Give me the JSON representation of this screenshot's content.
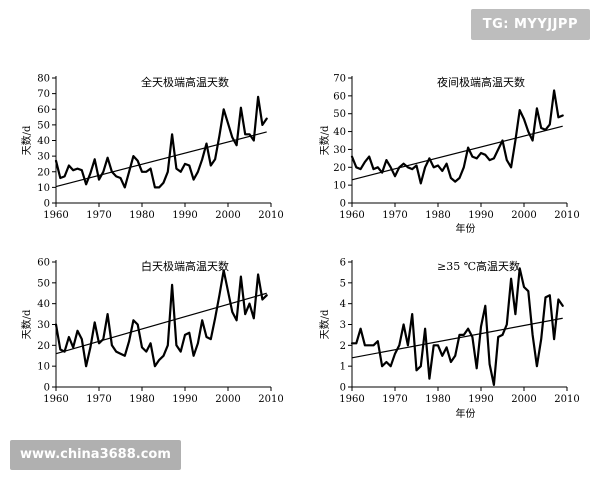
{
  "watermarks": {
    "top_right": "TG: MYYJJPP",
    "bottom_left": "www.china3688.com"
  },
  "colors": {
    "line": "#000000",
    "axis": "#000000",
    "background": "#ffffff"
  },
  "chart_data": [
    {
      "type": "line",
      "title": "全天极端高温天数",
      "xlabel": "",
      "ylabel": "天数/d",
      "xlim": [
        1960,
        2010
      ],
      "ylim": [
        0,
        80
      ],
      "xticks": [
        1960,
        1970,
        1980,
        1990,
        2000,
        2010
      ],
      "yticks": [
        0,
        10,
        20,
        30,
        40,
        50,
        60,
        70,
        80
      ],
      "grid": false,
      "x": [
        1960,
        1961,
        1962,
        1963,
        1964,
        1965,
        1966,
        1967,
        1968,
        1969,
        1970,
        1971,
        1972,
        1973,
        1974,
        1975,
        1976,
        1977,
        1978,
        1979,
        1980,
        1981,
        1982,
        1983,
        1984,
        1985,
        1986,
        1987,
        1988,
        1989,
        1990,
        1991,
        1992,
        1993,
        1994,
        1995,
        1996,
        1997,
        1998,
        1999,
        2000,
        2001,
        2002,
        2003,
        2004,
        2005,
        2006,
        2007,
        2008,
        2009
      ],
      "series": [
        {
          "values": [
            27,
            16,
            17,
            24,
            21,
            22,
            21,
            12,
            19,
            28,
            15,
            20,
            29,
            20,
            17,
            16,
            10,
            20,
            30,
            27,
            20,
            20,
            22,
            10,
            10,
            13,
            20,
            44,
            22,
            20,
            25,
            24,
            15,
            20,
            28,
            38,
            24,
            28,
            43,
            60,
            51,
            42,
            37,
            61,
            44,
            44,
            40,
            68,
            50,
            54
          ]
        },
        {
          "trend": [
            10.5,
            45.5
          ]
        }
      ]
    },
    {
      "type": "line",
      "title": "夜间极端高温天数",
      "xlabel": "年份",
      "ylabel": "天数/d",
      "xlim": [
        1960,
        2010
      ],
      "ylim": [
        0,
        70
      ],
      "xticks": [
        1960,
        1970,
        1980,
        1990,
        2000,
        2010
      ],
      "yticks": [
        0,
        10,
        20,
        30,
        40,
        50,
        60,
        70
      ],
      "grid": false,
      "x": [
        1960,
        1961,
        1962,
        1963,
        1964,
        1965,
        1966,
        1967,
        1968,
        1969,
        1970,
        1971,
        1972,
        1973,
        1974,
        1975,
        1976,
        1977,
        1978,
        1979,
        1980,
        1981,
        1982,
        1983,
        1984,
        1985,
        1986,
        1987,
        1988,
        1989,
        1990,
        1991,
        1992,
        1993,
        1994,
        1995,
        1996,
        1997,
        1998,
        1999,
        2000,
        2001,
        2002,
        2003,
        2004,
        2005,
        2006,
        2007,
        2008,
        2009
      ],
      "series": [
        {
          "values": [
            26,
            20,
            19,
            23,
            26,
            19,
            20,
            17,
            24,
            20,
            15,
            20,
            22,
            20,
            19,
            21,
            11,
            20,
            25,
            20,
            21,
            18,
            22,
            14,
            12,
            14,
            20,
            31,
            26,
            25,
            28,
            27,
            24,
            25,
            30,
            35,
            24,
            20,
            35,
            52,
            47,
            40,
            35,
            53,
            42,
            41,
            44,
            63,
            48,
            49
          ]
        },
        {
          "trend": [
            13,
            43
          ]
        }
      ]
    },
    {
      "type": "line",
      "title": "白天极端高温天数",
      "xlabel": "",
      "ylabel": "天数/d",
      "xlim": [
        1960,
        2010
      ],
      "ylim": [
        0,
        60
      ],
      "xticks": [
        1960,
        1970,
        1980,
        1990,
        2000,
        2010
      ],
      "yticks": [
        0,
        10,
        20,
        30,
        40,
        50,
        60
      ],
      "grid": false,
      "x": [
        1960,
        1961,
        1962,
        1963,
        1964,
        1965,
        1966,
        1967,
        1968,
        1969,
        1970,
        1971,
        1972,
        1973,
        1974,
        1975,
        1976,
        1977,
        1978,
        1979,
        1980,
        1981,
        1982,
        1983,
        1984,
        1985,
        1986,
        1987,
        1988,
        1989,
        1990,
        1991,
        1992,
        1993,
        1994,
        1995,
        1996,
        1997,
        1998,
        1999,
        2000,
        2001,
        2002,
        2003,
        2004,
        2005,
        2006,
        2007,
        2008,
        2009
      ],
      "series": [
        {
          "values": [
            30,
            18,
            17,
            24,
            19,
            27,
            23,
            10,
            19,
            31,
            21,
            23,
            35,
            20,
            17,
            16,
            15,
            22,
            32,
            30,
            19,
            17,
            21,
            10,
            13,
            15,
            20,
            49,
            20,
            17,
            25,
            26,
            15,
            21,
            32,
            24,
            23,
            33,
            44,
            56,
            46,
            36,
            32,
            53,
            35,
            40,
            33,
            54,
            42,
            44
          ]
        },
        {
          "trend": [
            16,
            45
          ]
        }
      ]
    },
    {
      "type": "line",
      "title": "≥35 ℃高温天数",
      "xlabel": "年份",
      "ylabel": "天数/d",
      "xlim": [
        1960,
        2010
      ],
      "ylim": [
        0,
        6
      ],
      "xticks": [
        1960,
        1970,
        1980,
        1990,
        2000,
        2010
      ],
      "yticks": [
        0,
        1,
        2,
        3,
        4,
        5,
        6
      ],
      "grid": false,
      "x": [
        1960,
        1961,
        1962,
        1963,
        1964,
        1965,
        1966,
        1967,
        1968,
        1969,
        1970,
        1971,
        1972,
        1973,
        1974,
        1975,
        1976,
        1977,
        1978,
        1979,
        1980,
        1981,
        1982,
        1983,
        1984,
        1985,
        1986,
        1987,
        1988,
        1989,
        1990,
        1991,
        1992,
        1993,
        1994,
        1995,
        1996,
        1997,
        1998,
        1999,
        2000,
        2001,
        2002,
        2003,
        2004,
        2005,
        2006,
        2007,
        2008,
        2009
      ],
      "series": [
        {
          "values": [
            2.1,
            2.1,
            2.8,
            2.0,
            2.0,
            2.0,
            2.2,
            1.0,
            1.2,
            1.0,
            1.6,
            2.0,
            3.0,
            2.0,
            3.5,
            0.8,
            1.0,
            2.8,
            0.4,
            2.0,
            2.0,
            1.5,
            1.9,
            1.2,
            1.5,
            2.5,
            2.5,
            2.8,
            2.4,
            0.9,
            2.9,
            3.9,
            1.1,
            0.1,
            2.4,
            2.5,
            3.0,
            5.2,
            3.5,
            5.7,
            4.8,
            4.6,
            2.5,
            1.0,
            2.3,
            4.3,
            4.4,
            2.3,
            4.2,
            3.9
          ]
        },
        {
          "trend": [
            1.4,
            3.3
          ]
        }
      ]
    }
  ]
}
